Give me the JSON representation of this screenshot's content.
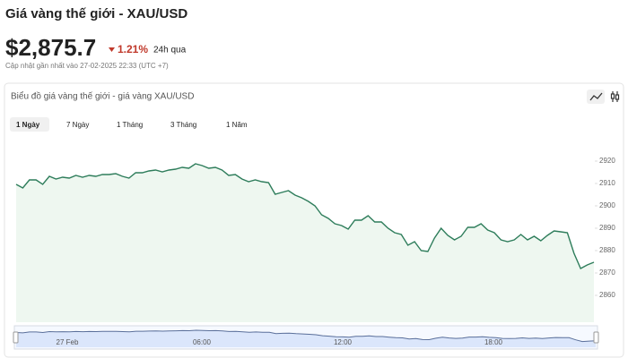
{
  "header": {
    "title": "Giá vàng thế giới - XAU/USD",
    "price": "$2,875.7",
    "change": "1.21%",
    "change_period": "24h qua",
    "updated": "Cập nhật gần nhất vào 27-02-2025 22:33 (UTC +7)"
  },
  "card": {
    "title": "Biểu đồ giá vàng thế giới - giá vàng XAU/USD",
    "tabs": [
      "1 Ngày",
      "7 Ngày",
      "1 Tháng",
      "3 Tháng",
      "1 Năm"
    ],
    "active_tab": 0
  },
  "chart_data": {
    "type": "area",
    "series": [
      {
        "color": "#2e7d5b",
        "fill": "#eef7f0",
        "values": [
          2909.6,
          2908,
          2911.6,
          2911.6,
          2909.6,
          2913.2,
          2912,
          2912.8,
          2912.4,
          2913.6,
          2912.8,
          2913.6,
          2913.2,
          2914,
          2914,
          2914.4,
          2913.2,
          2912.4,
          2914.8,
          2914.8,
          2915.6,
          2916,
          2915.2,
          2916,
          2916.4,
          2917.2,
          2916.8,
          2918.8,
          2918,
          2916.8,
          2917.2,
          2916,
          2913.6,
          2914,
          2912,
          2910.8,
          2911.6,
          2910.8,
          2910.4,
          2905.2,
          2906,
          2906.8,
          2904.8,
          2903.6,
          2902,
          2900,
          2896,
          2894.4,
          2892,
          2891.2,
          2889.6,
          2893.6,
          2893.6,
          2895.6,
          2892.8,
          2892.8,
          2890,
          2888,
          2887.2,
          2882.4,
          2884,
          2880,
          2879.6,
          2885.6,
          2890,
          2886.8,
          2884.8,
          2886.4,
          2890.4,
          2890.4,
          2892,
          2889.2,
          2888,
          2884.8,
          2884,
          2884.8,
          2887.2,
          2884.8,
          2886.4,
          2884.4,
          2886.8,
          2888.8,
          2888.4,
          2888,
          2878.8,
          2872,
          2873.6,
          2874.8
        ]
      }
    ],
    "ylim": [
      2848,
      2930
    ],
    "yticks": [
      2860,
      2870,
      2880,
      2890,
      2900,
      2910,
      2920
    ],
    "grid": false,
    "navigator_labels": [
      "27 Feb",
      "06:00",
      "12:00",
      "18:00"
    ]
  }
}
